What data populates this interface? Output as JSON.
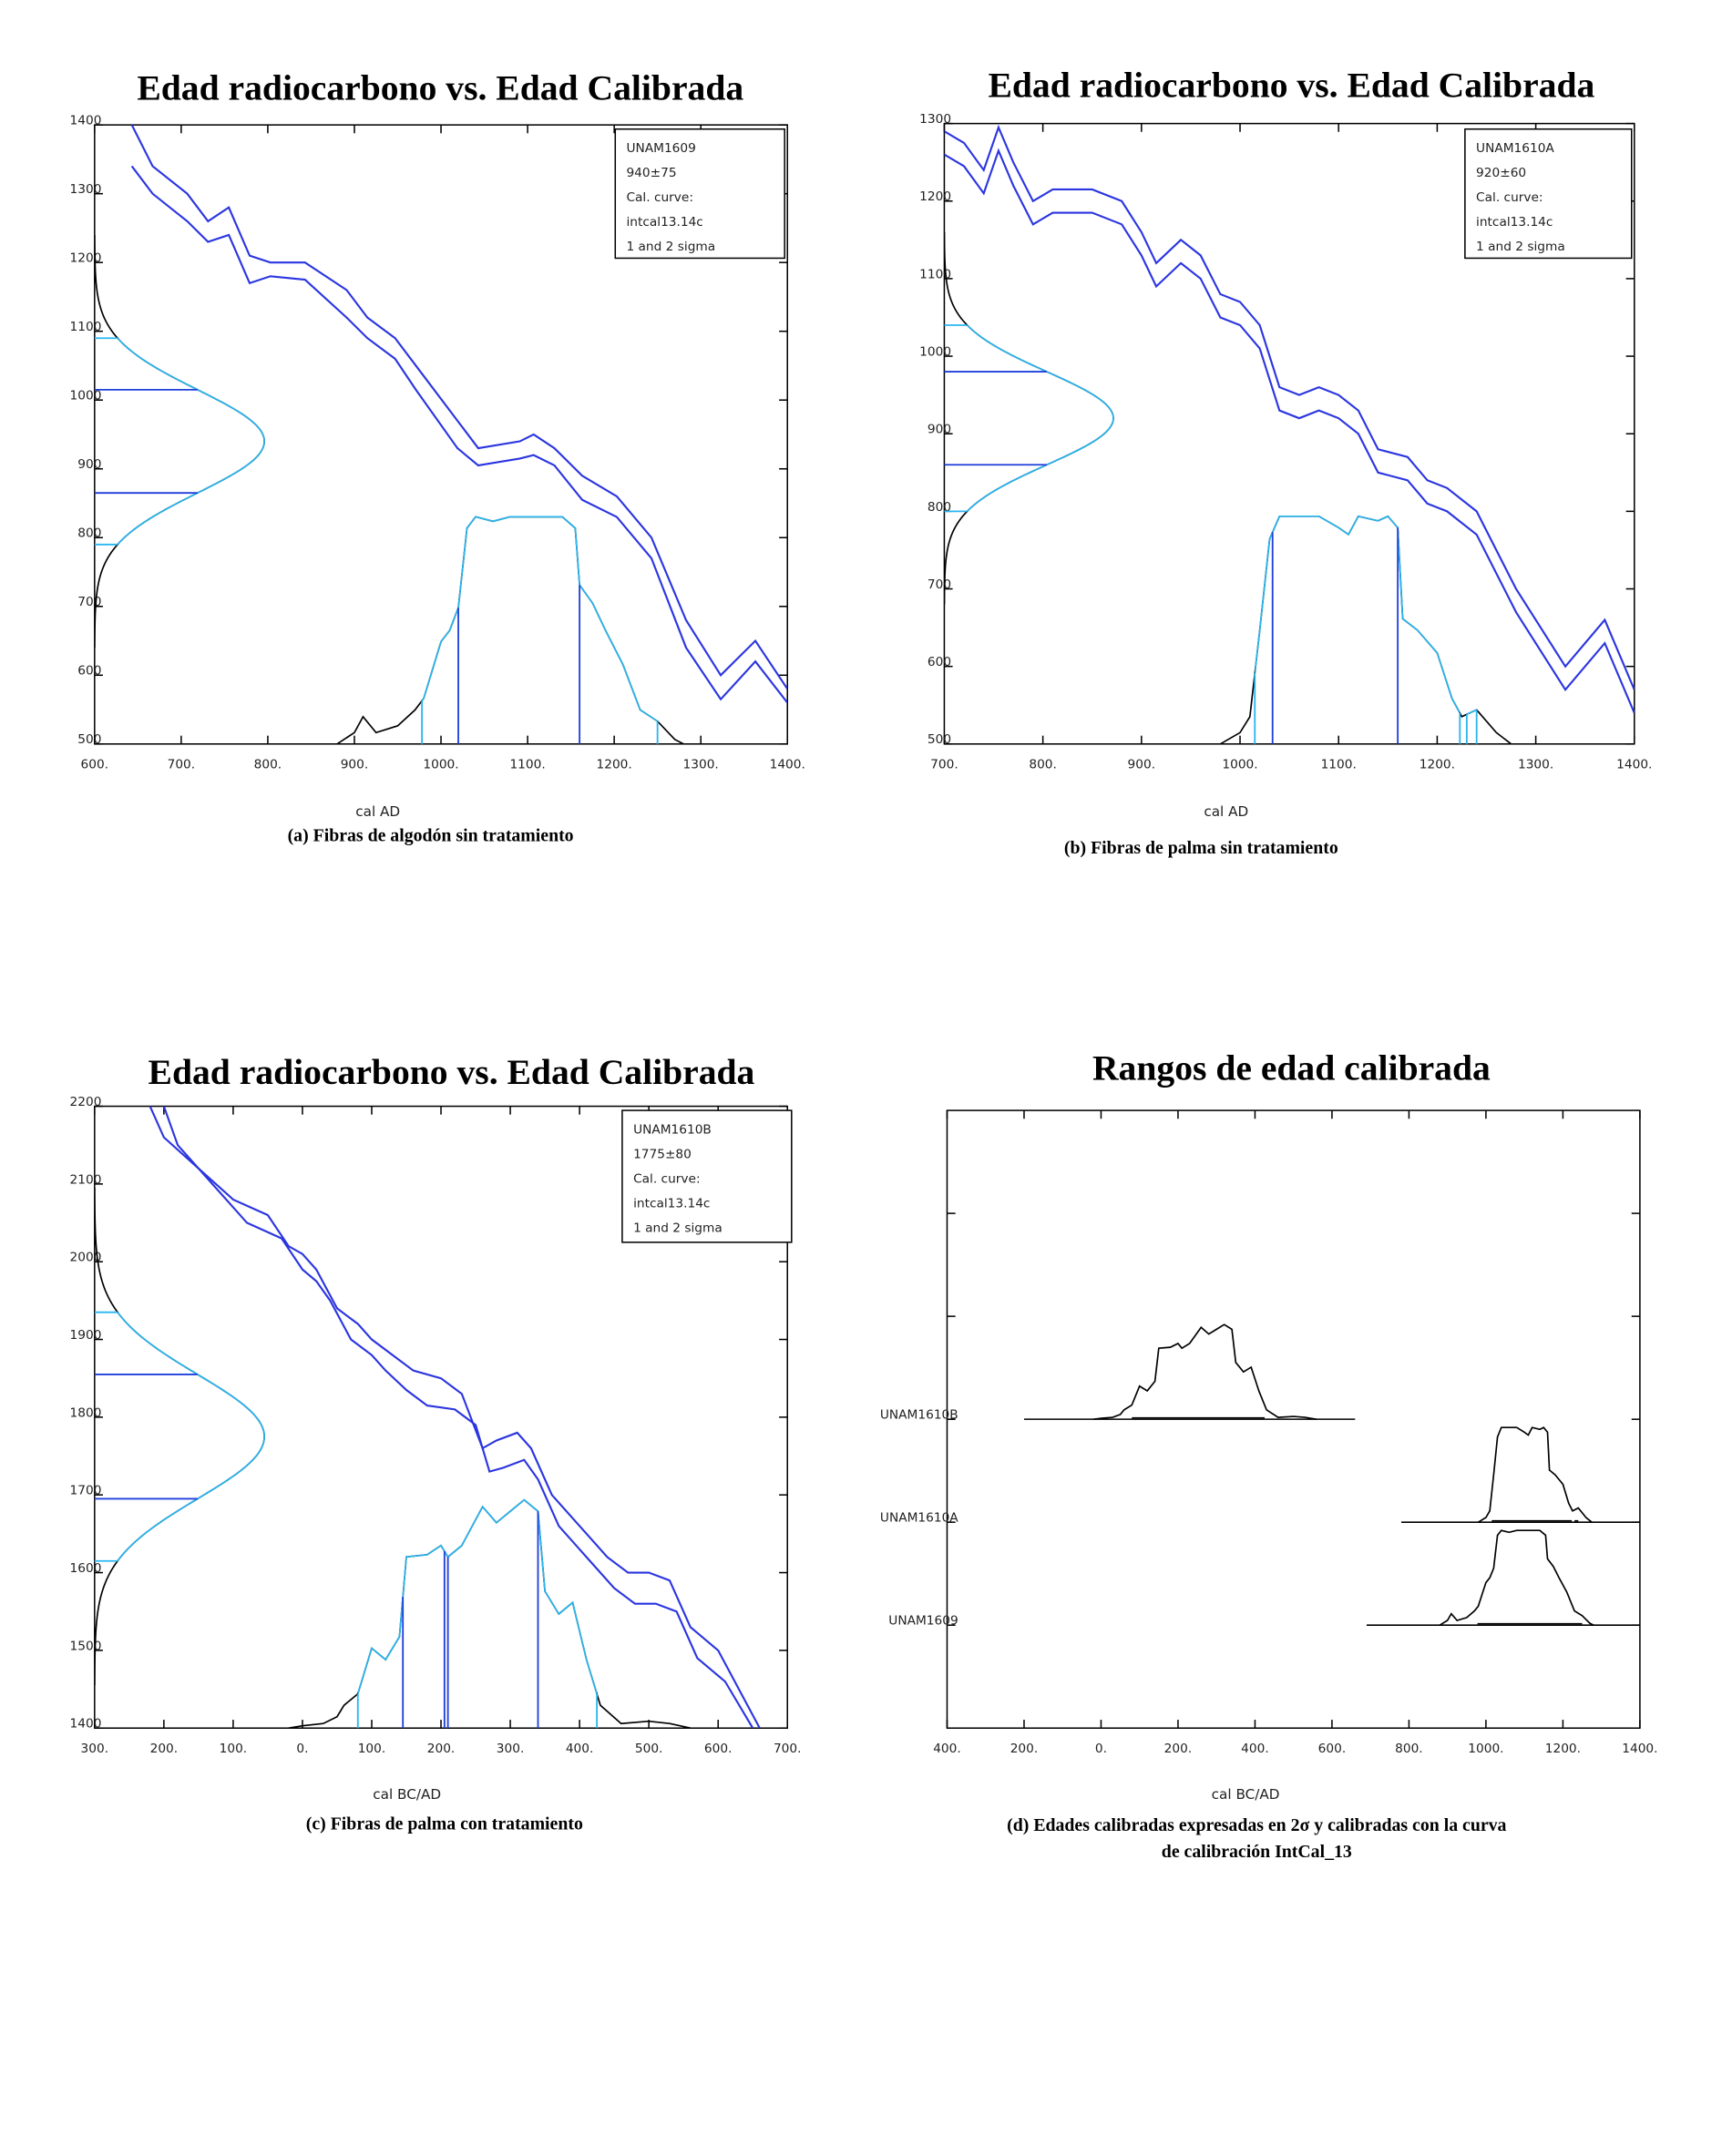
{
  "chart_data": [
    {
      "type": "calibration",
      "title": "Edad radiocarbono vs. Edad Calibrada",
      "x_label": "cal AD",
      "caption": "(a)  Fibras de algodón sin tratamiento",
      "legend": [
        "UNAM1609",
        "940±75",
        "Cal. curve:",
        "intcal13.14c",
        "1 and 2 sigma"
      ],
      "measurement": {
        "mean": 940,
        "error": 75
      },
      "xlim": [
        600,
        1400
      ],
      "xticks": [
        {
          "value": 600,
          "label": "600."
        },
        {
          "value": 700,
          "label": "700."
        },
        {
          "value": 800,
          "label": "800."
        },
        {
          "value": 900,
          "label": "900."
        },
        {
          "value": 1000,
          "label": "1000."
        },
        {
          "value": 1100,
          "label": "1100."
        },
        {
          "value": 1200,
          "label": "1200."
        },
        {
          "value": 1300,
          "label": "1300."
        },
        {
          "value": 1400,
          "label": "1400."
        }
      ],
      "ylim": [
        500,
        1400
      ],
      "yticks": [
        500,
        600,
        700,
        800,
        900,
        1000,
        1100,
        1200,
        1300,
        1400
      ],
      "series": [
        {
          "color": "#2b35e0",
          "x": [
            643,
            667,
            707,
            731,
            755,
            779,
            803,
            843,
            891,
            915,
            947,
            971,
            1019,
            1043,
            1091,
            1107,
            1131,
            1163,
            1203,
            1243,
            1283,
            1323,
            1363,
            1400
          ],
          "values": [
            1400,
            1340,
            1300,
            1260,
            1280,
            1210,
            1200,
            1200,
            1160,
            1120,
            1090,
            1050,
            970,
            930,
            940,
            950,
            930,
            890,
            860,
            800,
            680,
            600,
            650,
            580
          ]
        },
        {
          "color": "#2b35e0",
          "x": [
            643,
            667,
            707,
            731,
            755,
            779,
            803,
            843,
            891,
            915,
            947,
            971,
            1019,
            1043,
            1091,
            1107,
            1131,
            1163,
            1203,
            1243,
            1283,
            1323,
            1363,
            1400
          ],
          "values": [
            1340,
            1300,
            1260,
            1230,
            1240,
            1170,
            1180,
            1175,
            1120,
            1090,
            1060,
            1015,
            930,
            905,
            915,
            920,
            905,
            855,
            830,
            770,
            640,
            565,
            620,
            560
          ]
        }
      ],
      "distribution": {
        "x": [
          880,
          900,
          910,
          925,
          950,
          970,
          980,
          1000,
          1010,
          1020,
          1030,
          1040,
          1060,
          1080,
          1100,
          1140,
          1155,
          1160,
          1175,
          1190,
          1210,
          1230,
          1250,
          1270,
          1280
        ],
        "values": [
          0,
          0.05,
          0.12,
          0.05,
          0.08,
          0.15,
          0.2,
          0.45,
          0.5,
          0.6,
          0.95,
          1,
          0.98,
          1,
          1,
          1,
          0.95,
          0.7,
          0.62,
          0.5,
          0.35,
          0.15,
          0.1,
          0.02,
          0
        ]
      },
      "ranges_1sigma": [
        [
          1020,
          1160
        ]
      ],
      "ranges_2sigma": [
        [
          978,
          1250
        ]
      ],
      "sigma_colors": [
        "#1f3fdc",
        "#29b6f0"
      ],
      "distribution_color": "#000000"
    },
    {
      "type": "calibration",
      "title": "Edad radiocarbono vs. Edad Calibrada",
      "x_label": "cal AD",
      "caption": "(b) Fibras de palma sin tratamiento",
      "legend": [
        "UNAM1610A",
        "920±60",
        "Cal. curve:",
        "intcal13.14c",
        "1 and 2 sigma"
      ],
      "measurement": {
        "mean": 920,
        "error": 60
      },
      "xlim": [
        700,
        1400
      ],
      "xticks": [
        {
          "value": 700,
          "label": "700."
        },
        {
          "value": 800,
          "label": "800."
        },
        {
          "value": 900,
          "label": "900."
        },
        {
          "value": 1000,
          "label": "1000."
        },
        {
          "value": 1100,
          "label": "1100."
        },
        {
          "value": 1200,
          "label": "1200."
        },
        {
          "value": 1300,
          "label": "1300."
        },
        {
          "value": 1400,
          "label": "1400."
        }
      ],
      "ylim": [
        500,
        1300
      ],
      "yticks": [
        500,
        600,
        700,
        800,
        900,
        1000,
        1100,
        1200,
        1300
      ],
      "series": [
        {
          "color": "#2b35e0",
          "x": [
            700,
            720,
            740,
            755,
            770,
            790,
            810,
            850,
            880,
            900,
            915,
            940,
            960,
            980,
            1000,
            1020,
            1040,
            1060,
            1080,
            1100,
            1120,
            1140,
            1170,
            1190,
            1210,
            1240,
            1280,
            1330,
            1370,
            1400
          ],
          "values": [
            1290,
            1275,
            1240,
            1295,
            1250,
            1200,
            1215,
            1215,
            1200,
            1160,
            1120,
            1150,
            1130,
            1080,
            1070,
            1040,
            960,
            950,
            960,
            950,
            930,
            880,
            870,
            840,
            830,
            800,
            700,
            600,
            660,
            570
          ]
        },
        {
          "color": "#2b35e0",
          "x": [
            700,
            720,
            740,
            755,
            770,
            790,
            810,
            850,
            880,
            900,
            915,
            940,
            960,
            980,
            1000,
            1020,
            1040,
            1060,
            1080,
            1100,
            1120,
            1140,
            1170,
            1190,
            1210,
            1240,
            1280,
            1330,
            1370,
            1400
          ],
          "values": [
            1260,
            1245,
            1210,
            1265,
            1220,
            1170,
            1185,
            1185,
            1170,
            1130,
            1090,
            1120,
            1100,
            1050,
            1040,
            1010,
            930,
            920,
            930,
            920,
            900,
            850,
            840,
            810,
            800,
            770,
            670,
            570,
            630,
            540
          ]
        }
      ],
      "distribution": {
        "x": [
          980,
          1000,
          1010,
          1020,
          1030,
          1040,
          1080,
          1100,
          1110,
          1120,
          1140,
          1150,
          1160,
          1165,
          1180,
          1190,
          1200,
          1215,
          1225,
          1240,
          1260,
          1275
        ],
        "values": [
          0,
          0.05,
          0.12,
          0.5,
          0.9,
          1,
          1,
          0.95,
          0.92,
          1,
          0.98,
          1,
          0.95,
          0.55,
          0.5,
          0.45,
          0.4,
          0.2,
          0.12,
          0.15,
          0.05,
          0
        ]
      },
      "ranges_1sigma": [
        [
          1033,
          1160
        ]
      ],
      "ranges_2sigma": [
        [
          1015,
          1223
        ],
        [
          1230,
          1240
        ]
      ],
      "sigma_colors": [
        "#1f3fdc",
        "#29b6f0"
      ],
      "distribution_color": "#000000"
    },
    {
      "type": "calibration",
      "title": "Edad radiocarbono vs. Edad Calibrada",
      "x_label": "cal BC/AD",
      "caption": "(c) Fibras de palma con tratamiento",
      "legend": [
        "UNAM1610B",
        "1775±80",
        "Cal. curve:",
        "intcal13.14c",
        "1 and 2 sigma"
      ],
      "measurement": {
        "mean": 1775,
        "error": 80
      },
      "xlim": [
        -300,
        700
      ],
      "xticks": [
        {
          "value": -300,
          "label": "300."
        },
        {
          "value": -200,
          "label": "200."
        },
        {
          "value": -100,
          "label": "100."
        },
        {
          "value": 0,
          "label": "0."
        },
        {
          "value": 100,
          "label": "100."
        },
        {
          "value": 200,
          "label": "200."
        },
        {
          "value": 300,
          "label": "300."
        },
        {
          "value": 400,
          "label": "400."
        },
        {
          "value": 500,
          "label": "500."
        },
        {
          "value": 600,
          "label": "600."
        },
        {
          "value": 700,
          "label": "700."
        }
      ],
      "ylim": [
        1400,
        2200
      ],
      "yticks": [
        1400,
        1500,
        1600,
        1700,
        1800,
        1900,
        2000,
        2100,
        2200
      ],
      "series": [
        {
          "color": "#2b35e0",
          "x": [
            -220,
            -200,
            -150,
            -100,
            -50,
            -20,
            0,
            20,
            50,
            80,
            100,
            130,
            160,
            200,
            230,
            260,
            280,
            310,
            330,
            360,
            400,
            440,
            470,
            500,
            530,
            560,
            600,
            660
          ],
          "values": [
            2200,
            2160,
            2120,
            2080,
            2060,
            2020,
            2010,
            1990,
            1940,
            1920,
            1900,
            1880,
            1860,
            1850,
            1830,
            1760,
            1770,
            1780,
            1760,
            1700,
            1660,
            1620,
            1600,
            1600,
            1590,
            1530,
            1500,
            1400
          ]
        },
        {
          "color": "#2b35e0",
          "x": [
            -200,
            -180,
            -130,
            -80,
            -30,
            0,
            20,
            40,
            70,
            100,
            120,
            150,
            180,
            220,
            250,
            270,
            290,
            320,
            340,
            370,
            410,
            450,
            480,
            510,
            540,
            570,
            610,
            650
          ],
          "values": [
            2200,
            2150,
            2100,
            2050,
            2030,
            1990,
            1975,
            1950,
            1900,
            1880,
            1860,
            1835,
            1815,
            1810,
            1790,
            1730,
            1735,
            1745,
            1720,
            1660,
            1620,
            1580,
            1560,
            1560,
            1550,
            1490,
            1460,
            1400
          ]
        }
      ],
      "distribution": {
        "x": [
          -20,
          0,
          30,
          50,
          60,
          80,
          100,
          120,
          140,
          150,
          180,
          200,
          210,
          230,
          260,
          280,
          300,
          320,
          340,
          350,
          370,
          390,
          410,
          430,
          460,
          500,
          530,
          560
        ],
        "values": [
          0,
          0.01,
          0.02,
          0.05,
          0.1,
          0.15,
          0.35,
          0.3,
          0.4,
          0.75,
          0.76,
          0.8,
          0.75,
          0.8,
          0.97,
          0.9,
          0.95,
          1,
          0.95,
          0.6,
          0.5,
          0.55,
          0.3,
          0.1,
          0.02,
          0.03,
          0.02,
          0
        ]
      },
      "ranges_1sigma": [
        [
          145,
          205
        ],
        [
          210,
          340
        ]
      ],
      "ranges_2sigma": [
        [
          80,
          425
        ]
      ],
      "sigma_colors": [
        "#1f3fdc",
        "#29b6f0"
      ],
      "distribution_color": "#000000"
    },
    {
      "type": "ranges",
      "title": "Rangos de edad calibrada",
      "x_label": "cal BC/AD",
      "caption": [
        "(d) Edades calibradas expresadas en 2σ y calibradas con la curva",
        "de calibración IntCal_13"
      ],
      "xlim": [
        -400,
        1400
      ],
      "xticks": [
        {
          "value": -400,
          "label": "400."
        },
        {
          "value": -200,
          "label": "200."
        },
        {
          "value": 0,
          "label": "0."
        },
        {
          "value": 200,
          "label": "200."
        },
        {
          "value": 400,
          "label": "400."
        },
        {
          "value": 600,
          "label": "600."
        },
        {
          "value": 800,
          "label": "800."
        },
        {
          "value": 1000,
          "label": "1000."
        },
        {
          "value": 1200,
          "label": "1200."
        },
        {
          "value": 1400,
          "label": "1400."
        }
      ],
      "categories": [
        "UNAM1609",
        "UNAM1610A",
        "UNAM1610B",
        null,
        null
      ],
      "spans": [
        [
          690,
          1400
        ],
        [
          780,
          1400
        ],
        [
          -200,
          660
        ]
      ],
      "color": "#000000"
    }
  ]
}
